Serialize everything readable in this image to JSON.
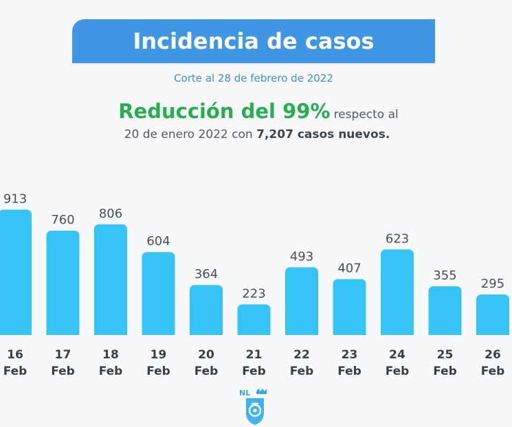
{
  "header": {
    "title": "Incidencia de casos",
    "subtitle": "Corte al 28 de febrero de 2022"
  },
  "summary": {
    "highlight": "Reducción del 99%",
    "line1_rest": "respecto al",
    "line2_prefix": "20 de enero 2022 con ",
    "line2_bold": "7,207 casos nuevos."
  },
  "logo": {
    "text": "NL",
    "icon": "nuevo-leon-shield-icon"
  },
  "colors": {
    "banner": "#3f97e3",
    "bar": "#36c3f5",
    "highlight": "#27ae4f"
  },
  "chart_data": {
    "type": "bar",
    "categories": [
      "16 Feb",
      "17 Feb",
      "18 Feb",
      "19 Feb",
      "20 Feb",
      "21 Feb",
      "22 Feb",
      "23 Feb",
      "24 Feb",
      "25 Feb",
      "26 Feb"
    ],
    "days": [
      "16",
      "17",
      "18",
      "19",
      "20",
      "21",
      "22",
      "23",
      "24",
      "25",
      "26"
    ],
    "month": "Feb",
    "values": [
      913,
      760,
      806,
      604,
      364,
      223,
      493,
      407,
      623,
      355,
      295
    ],
    "data_labels": [
      "913",
      "760",
      "806",
      "604",
      "364",
      "223",
      "493",
      "407",
      "623",
      "355",
      "295"
    ],
    "title": "",
    "xlabel": "",
    "ylabel": "",
    "ylim": [
      0,
      1000
    ],
    "grid": false,
    "legend": "none"
  }
}
